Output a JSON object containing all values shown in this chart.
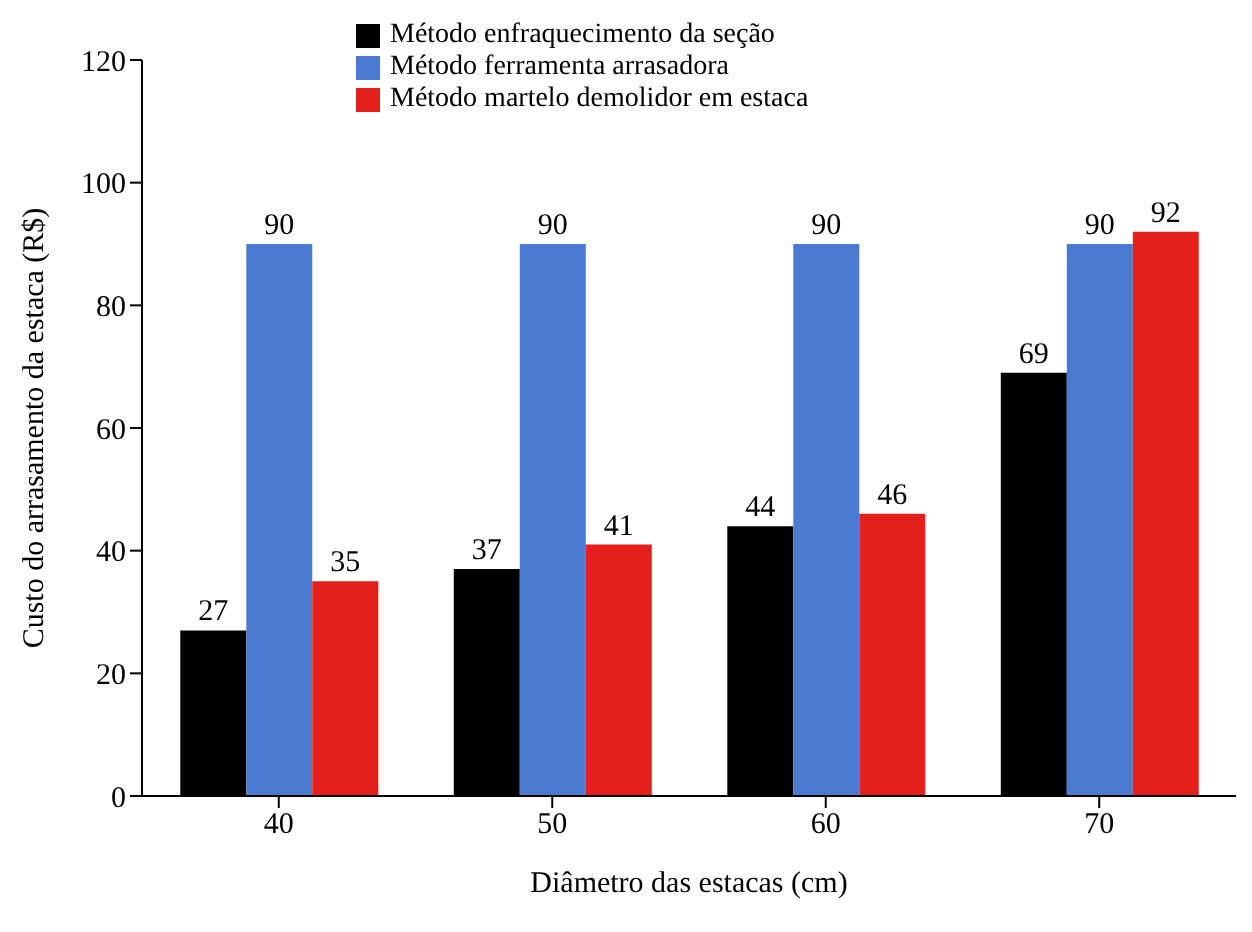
{
  "chart_data": {
    "type": "bar",
    "xlabel": "Diâmetro das estacas (cm)",
    "ylabel": "Custo do arrasamento da estaca (R$)",
    "categories": [
      "40",
      "50",
      "60",
      "70"
    ],
    "series": [
      {
        "name": "Método enfraquecimento da seção",
        "color": "#000000",
        "values": [
          27,
          37,
          44,
          69
        ]
      },
      {
        "name": "Método ferramenta arrasadora",
        "color": "#4a7bd0",
        "values": [
          90,
          90,
          90,
          90
        ]
      },
      {
        "name": "Método martelo demolidor em estaca",
        "color": "#e3201c",
        "values": [
          35,
          41,
          46,
          92
        ]
      }
    ],
    "ylim": [
      0,
      120
    ],
    "yticks": [
      0,
      20,
      40,
      60,
      80,
      100,
      120
    ],
    "grid": false,
    "legend": "top left",
    "data_labels": true
  }
}
